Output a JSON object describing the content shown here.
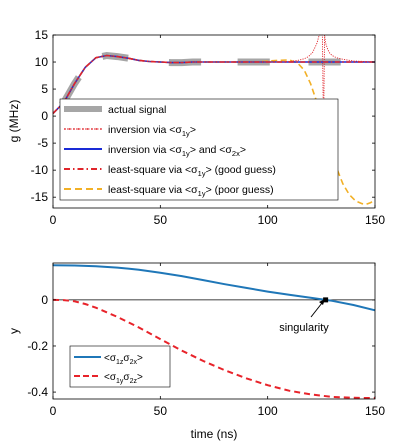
{
  "chart_data": [
    {
      "type": "line",
      "ylabel": "g (MHz)",
      "xlabel": "",
      "xlim": [
        0,
        150
      ],
      "ylim": [
        -17,
        15
      ],
      "xticks": [
        0,
        50,
        100,
        150
      ],
      "yticks": [
        15,
        10,
        5,
        0,
        -5,
        -10,
        -15
      ],
      "grid": false,
      "legend": {
        "placement": "bottom-left",
        "entries": [
          {
            "key": "actual",
            "label": "actual signal",
            "color": "#a6a6a6",
            "style": "thick-solid"
          },
          {
            "key": "inv1",
            "label": "inversion via <σ1y>",
            "color": "#e0252b",
            "style": "dotted-markers"
          },
          {
            "key": "inv2",
            "label": "inversion via <σ1y> and <σ2x>",
            "color": "#1a2bd6",
            "style": "solid"
          },
          {
            "key": "lsgood",
            "label": "least-square via <σ1y> (good guess)",
            "color": "#e0252b",
            "style": "dashed"
          },
          {
            "key": "lspoor",
            "label": "least-square via <σ1y> (poor guess)",
            "color": "#f2b026",
            "style": "dashed"
          }
        ]
      },
      "series": [
        {
          "name": "actual signal",
          "x": [
            0,
            5,
            10,
            15,
            20,
            25,
            30,
            35,
            40,
            45,
            50,
            55,
            60,
            65,
            70,
            75,
            80,
            85,
            90,
            95,
            100,
            105,
            110,
            115,
            120,
            125,
            130,
            135,
            140,
            145,
            150
          ],
          "y": [
            0.5,
            2.5,
            6,
            9,
            10.8,
            11.2,
            11,
            10.7,
            10.3,
            10.1,
            10,
            9.9,
            9.9,
            10,
            10,
            10,
            10,
            10,
            10,
            10,
            10,
            10,
            10,
            10,
            10,
            10,
            10,
            10,
            10,
            10,
            10
          ],
          "highlights": [
            [
              4,
              12
            ],
            [
              23,
              35
            ],
            [
              54,
              69
            ],
            [
              86,
              101
            ],
            [
              119,
              134
            ]
          ]
        },
        {
          "name": "inversion via <σ1y>",
          "x": [
            0,
            5,
            10,
            15,
            20,
            25,
            30,
            35,
            40,
            45,
            50,
            55,
            60,
            65,
            70,
            75,
            80,
            85,
            90,
            95,
            100,
            105,
            110,
            114,
            117,
            119,
            121,
            123,
            124,
            125,
            125.5,
            126,
            126.5,
            127,
            128,
            129,
            130,
            132,
            135,
            140,
            145,
            150
          ],
          "y": [
            0.5,
            2.5,
            6,
            9,
            10.8,
            11.2,
            11,
            10.7,
            10.3,
            10.1,
            10,
            9.9,
            9.9,
            10,
            10,
            10,
            10,
            10,
            10,
            10,
            10,
            10,
            10.1,
            10.3,
            10.6,
            11,
            11.8,
            13.5,
            16,
            19,
            25,
            -3,
            15,
            13.5,
            12.3,
            11.6,
            11.2,
            10.8,
            10.5,
            10.2,
            10.1,
            10
          ],
          "style": "dotted"
        },
        {
          "name": "inversion via <σ1y> and <σ2x>",
          "x": [
            0,
            5,
            10,
            15,
            20,
            25,
            30,
            35,
            40,
            45,
            50,
            55,
            60,
            65,
            70,
            75,
            80,
            85,
            90,
            95,
            100,
            105,
            110,
            115,
            120,
            125,
            130,
            135,
            140,
            145,
            150
          ],
          "y": [
            0.5,
            2.5,
            6,
            9,
            10.8,
            11.2,
            11,
            10.7,
            10.3,
            10.1,
            10,
            9.9,
            9.9,
            10,
            10,
            10,
            10,
            10,
            10,
            10,
            10,
            10,
            10,
            10,
            10,
            10,
            10,
            10,
            10,
            10,
            10
          ]
        },
        {
          "name": "least-square via <σ1y> (good guess)",
          "x": [
            0,
            5,
            10,
            15,
            20,
            25,
            30,
            35,
            40,
            45,
            50,
            55,
            60,
            65,
            70,
            75,
            80,
            85,
            90,
            95,
            100,
            105,
            110,
            115,
            120,
            125,
            130,
            135,
            140,
            145,
            150
          ],
          "y": [
            0.5,
            2.5,
            6,
            9,
            10.8,
            11.2,
            11,
            10.7,
            10.3,
            10.1,
            10,
            9.9,
            9.9,
            10,
            10,
            10,
            10,
            10,
            10,
            10,
            10,
            10,
            10,
            10,
            10,
            10,
            10,
            10,
            10,
            10,
            10
          ],
          "style": "dashed"
        },
        {
          "name": "least-square via <σ1y> (poor guess)",
          "x": [
            0,
            5,
            10,
            15,
            20,
            25,
            30,
            35,
            40,
            45,
            50,
            55,
            60,
            65,
            70,
            75,
            80,
            85,
            90,
            95,
            100,
            105,
            110,
            114,
            117,
            120,
            123,
            126,
            129,
            132,
            135,
            138,
            141,
            144,
            146,
            148,
            150
          ],
          "y": [
            0.5,
            2.5,
            6,
            9,
            10.8,
            11.2,
            11,
            10.7,
            10.3,
            10.1,
            10,
            9.9,
            9.9,
            10,
            10,
            10,
            10,
            10,
            10,
            10,
            10.2,
            10.3,
            10.4,
            9.8,
            8.5,
            6,
            2.5,
            -2,
            -6,
            -9.5,
            -12.5,
            -14.5,
            -15.7,
            -16.2,
            -16.3,
            -16,
            -15.5
          ],
          "style": "dashed"
        }
      ]
    },
    {
      "type": "line",
      "ylabel": "y",
      "xlabel": "time (ns)",
      "xlim": [
        0,
        150
      ],
      "ylim": [
        -0.43,
        0.16
      ],
      "xticks": [
        0,
        50,
        100,
        150
      ],
      "yticks": [
        0,
        -0.2,
        -0.4
      ],
      "grid": false,
      "hline": 0,
      "annotation": {
        "text": "singularity",
        "x": 127,
        "y": 0
      },
      "legend": {
        "placement": "bottom-left",
        "entries": [
          {
            "key": "s1",
            "label": "<σ1zσ2x>",
            "color": "#1f77b8",
            "style": "solid"
          },
          {
            "key": "s2",
            "label": "<σ1yσ2z>",
            "color": "#e8232a",
            "style": "dashed"
          }
        ]
      },
      "series": [
        {
          "name": "<σ1zσ2x>",
          "x": [
            0,
            10,
            20,
            30,
            40,
            50,
            60,
            70,
            80,
            90,
            100,
            110,
            120,
            127,
            130,
            140,
            150
          ],
          "y": [
            0.15,
            0.149,
            0.146,
            0.14,
            0.131,
            0.118,
            0.103,
            0.086,
            0.068,
            0.052,
            0.036,
            0.022,
            0.009,
            0,
            -0.004,
            -0.022,
            -0.045
          ]
        },
        {
          "name": "<σ1yσ2z>",
          "x": [
            0,
            5,
            10,
            15,
            20,
            30,
            40,
            50,
            60,
            70,
            80,
            90,
            100,
            110,
            120,
            130,
            140,
            150
          ],
          "y": [
            0,
            -0.001,
            -0.006,
            -0.018,
            -0.034,
            -0.074,
            -0.12,
            -0.17,
            -0.22,
            -0.265,
            -0.305,
            -0.34,
            -0.37,
            -0.394,
            -0.41,
            -0.421,
            -0.425,
            -0.426
          ],
          "style": "dashed"
        }
      ]
    }
  ]
}
